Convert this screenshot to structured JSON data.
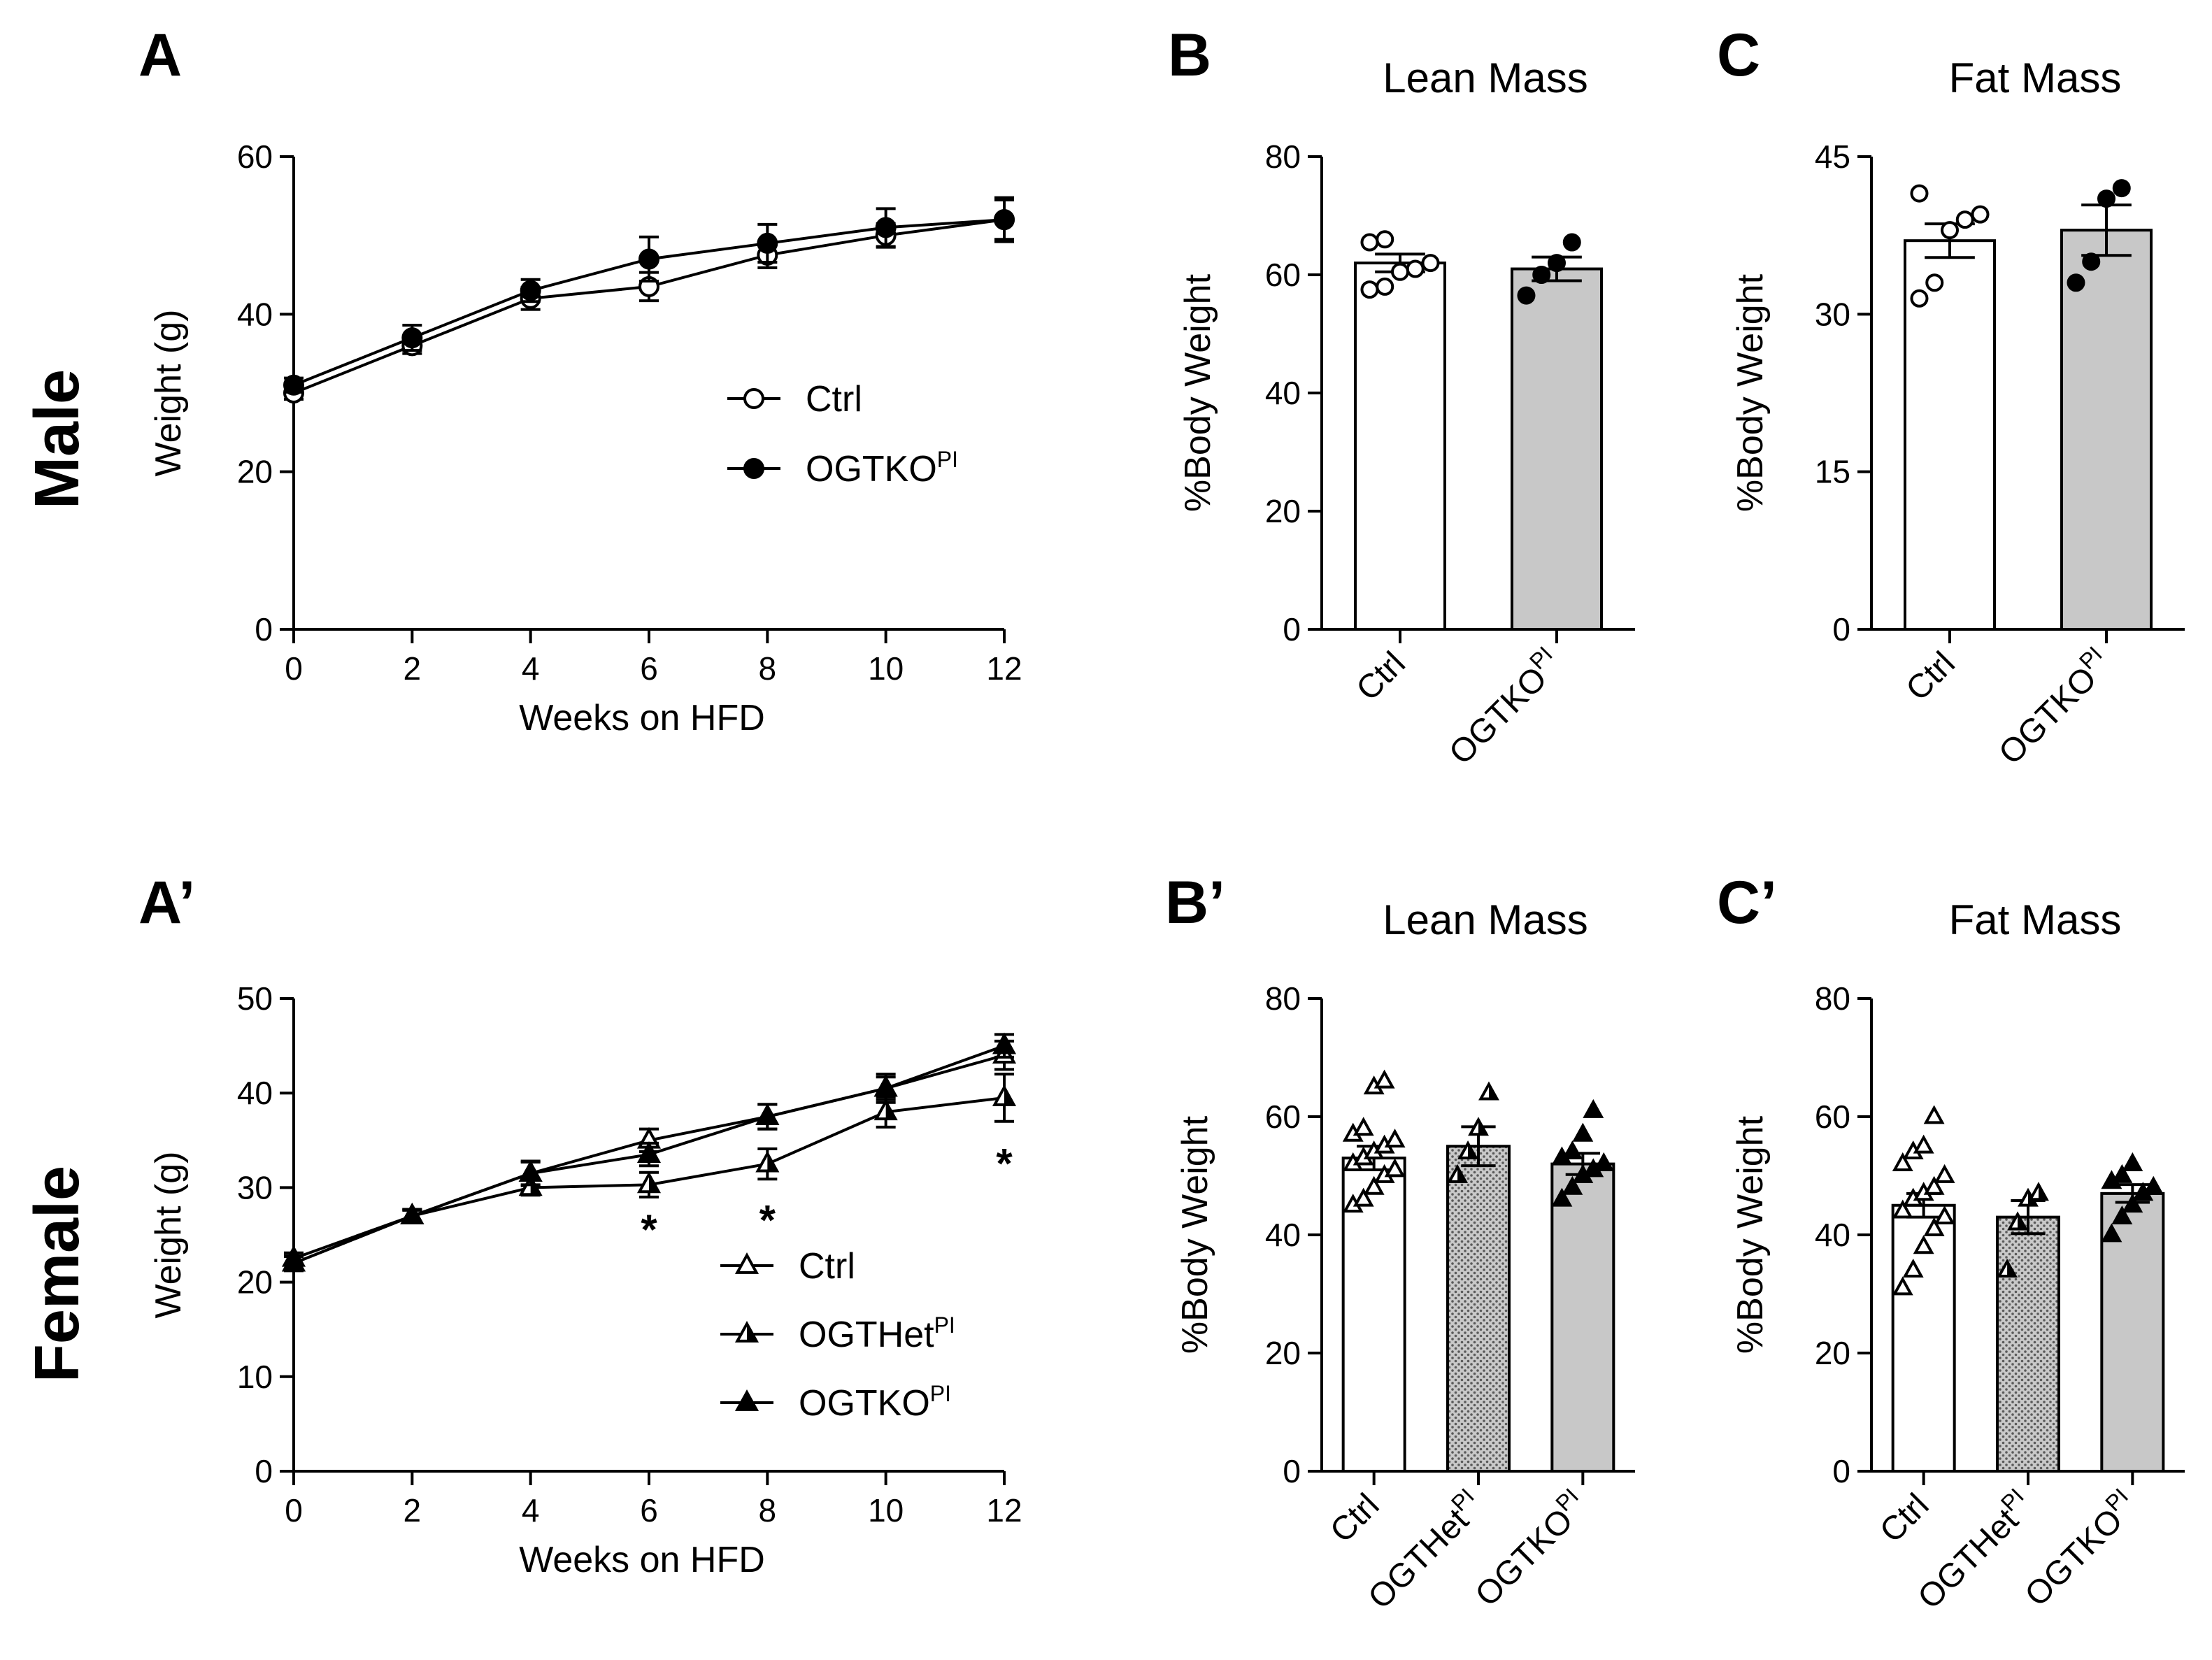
{
  "row_labels": {
    "male": "Male",
    "female": "Female"
  },
  "superscript": "PI",
  "chart_data": [
    {
      "id": "A",
      "letter": "A",
      "type": "line",
      "row": "male",
      "title": "",
      "xlabel": "Weeks on HFD",
      "ylabel": "Weight (g)",
      "xlim": [
        0,
        12
      ],
      "xticks": [
        0,
        2,
        4,
        6,
        8,
        10,
        12
      ],
      "ylim": [
        0,
        60
      ],
      "yticks": [
        0,
        20,
        40,
        60
      ],
      "x": [
        0,
        2,
        4,
        6,
        8,
        10,
        12
      ],
      "series": [
        {
          "name": "Ctrl",
          "sup": "",
          "marker": "circle-open",
          "values": [
            30,
            36,
            42,
            43.5,
            47.5,
            50,
            52
          ],
          "errors": [
            0.8,
            1.0,
            1.4,
            1.8,
            1.6,
            1.5,
            2.8
          ]
        },
        {
          "name": "OGTKO",
          "sup": "PI",
          "marker": "circle-filled",
          "values": [
            31,
            37,
            43,
            47,
            49,
            51,
            52
          ],
          "errors": [
            0.9,
            1.6,
            1.4,
            2.8,
            2.4,
            2.4,
            2.5
          ]
        }
      ],
      "annotations": []
    },
    {
      "id": "B",
      "letter": "B",
      "type": "bar",
      "row": "male",
      "title": "Lean Mass",
      "ylabel": "%Body Weight",
      "ylim": [
        0,
        80
      ],
      "yticks": [
        0,
        20,
        40,
        60,
        80
      ],
      "categories": [
        {
          "name": "Ctrl",
          "sup": ""
        },
        {
          "name": "OGTKO",
          "sup": "PI"
        }
      ],
      "values": [
        62,
        61
      ],
      "errors": [
        1.5,
        2.0
      ],
      "fills": [
        "#ffffff",
        "#c8c8c8"
      ],
      "patterns": [
        "none",
        "none"
      ],
      "markers": [
        "circle-open",
        "circle-filled"
      ],
      "points": [
        [
          57.5,
          58,
          60.5,
          61,
          62,
          65.5,
          66
        ],
        [
          56.5,
          60,
          62,
          65.5
        ]
      ]
    },
    {
      "id": "C",
      "letter": "C",
      "type": "bar",
      "row": "male",
      "title": "Fat Mass",
      "ylabel": "%Body Weight",
      "ylim": [
        0,
        45
      ],
      "yticks": [
        0,
        15,
        30,
        45
      ],
      "categories": [
        {
          "name": "Ctrl",
          "sup": ""
        },
        {
          "name": "OGTKO",
          "sup": "PI"
        }
      ],
      "values": [
        37,
        38
      ],
      "errors": [
        1.6,
        2.4
      ],
      "fills": [
        "#ffffff",
        "#c8c8c8"
      ],
      "patterns": [
        "none",
        "none"
      ],
      "markers": [
        "circle-open",
        "circle-filled"
      ],
      "points": [
        [
          31.5,
          33,
          38,
          39,
          39.5,
          41.5
        ],
        [
          33,
          35,
          41,
          42
        ]
      ]
    },
    {
      "id": "A2",
      "letter": "A’",
      "type": "line",
      "row": "female",
      "title": "",
      "xlabel": "Weeks on HFD",
      "ylabel": "Weight (g)",
      "xlim": [
        0,
        12
      ],
      "xticks": [
        0,
        2,
        4,
        6,
        8,
        10,
        12
      ],
      "ylim": [
        0,
        50
      ],
      "yticks": [
        0,
        10,
        20,
        30,
        40,
        50
      ],
      "x": [
        0,
        2,
        4,
        6,
        8,
        10,
        12
      ],
      "series": [
        {
          "name": "Ctrl",
          "sup": "",
          "marker": "triangle-open",
          "values": [
            22.5,
            27,
            31.5,
            35,
            37.5,
            40.5,
            44
          ],
          "errors": [
            0.6,
            0.6,
            1.3,
            1.2,
            1.3,
            1.5,
            1.5
          ]
        },
        {
          "name": "OGTHet",
          "sup": "PI",
          "marker": "triangle-half",
          "values": [
            22,
            27,
            30,
            30.3,
            32.5,
            38,
            39.5
          ],
          "errors": [
            0.8,
            0.7,
            0.8,
            1.3,
            1.6,
            1.6,
            2.5
          ]
        },
        {
          "name": "OGTKO",
          "sup": "PI",
          "marker": "triangle-filled",
          "values": [
            22,
            27,
            31.5,
            33.5,
            37.5,
            40.5,
            45
          ],
          "errors": [
            0.7,
            0.7,
            1.2,
            1.2,
            1.3,
            1.2,
            1.2
          ]
        }
      ],
      "annotations": [
        {
          "x": 6,
          "y": 25.5,
          "text": "*"
        },
        {
          "x": 8,
          "y": 26.5,
          "text": "*"
        },
        {
          "x": 12,
          "y": 32.5,
          "text": "*"
        }
      ]
    },
    {
      "id": "B2",
      "letter": "B’",
      "type": "bar",
      "row": "female",
      "title": "Lean Mass",
      "ylabel": "%Body Weight",
      "ylim": [
        0,
        80
      ],
      "yticks": [
        0,
        20,
        40,
        60,
        80
      ],
      "categories": [
        {
          "name": "Ctrl",
          "sup": ""
        },
        {
          "name": "OGTHet",
          "sup": "PI"
        },
        {
          "name": "OGTKO",
          "sup": "PI"
        }
      ],
      "values": [
        53,
        55,
        52
      ],
      "errors": [
        2.0,
        3.3,
        1.8
      ],
      "fills": [
        "#ffffff",
        "#c8c8c8",
        "#c8c8c8"
      ],
      "patterns": [
        "none",
        "dots",
        "none"
      ],
      "markers": [
        "triangle-open",
        "triangle-half",
        "triangle-filled"
      ],
      "points": [
        [
          45,
          46,
          48,
          50,
          51,
          52,
          53,
          54,
          55,
          56,
          57,
          58,
          65,
          66
        ],
        [
          50,
          54,
          58,
          64
        ],
        [
          46,
          48,
          50,
          51,
          52,
          53,
          54,
          57,
          61
        ]
      ]
    },
    {
      "id": "C2",
      "letter": "C’",
      "type": "bar",
      "row": "female",
      "title": "Fat Mass",
      "ylabel": "%Body Weight",
      "ylim": [
        0,
        80
      ],
      "yticks": [
        0,
        20,
        40,
        60,
        80
      ],
      "categories": [
        {
          "name": "Ctrl",
          "sup": ""
        },
        {
          "name": "OGTHet",
          "sup": "PI"
        },
        {
          "name": "OGTKO",
          "sup": "PI"
        }
      ],
      "values": [
        45,
        43,
        47
      ],
      "errors": [
        2.0,
        2.8,
        1.5
      ],
      "fills": [
        "#ffffff",
        "#c8c8c8",
        "#c8c8c8"
      ],
      "patterns": [
        "none",
        "dots",
        "none"
      ],
      "markers": [
        "triangle-open",
        "triangle-half",
        "triangle-filled"
      ],
      "points": [
        [
          31,
          34,
          38,
          41,
          43,
          44,
          46,
          47,
          48,
          50,
          52,
          54,
          55,
          60
        ],
        [
          34,
          42,
          46,
          47
        ],
        [
          40,
          43,
          45,
          47,
          48,
          49,
          50,
          52
        ]
      ]
    }
  ]
}
